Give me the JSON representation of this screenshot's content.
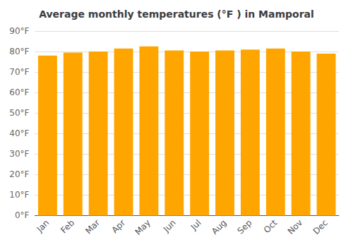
{
  "chart_data": {
    "type": "bar",
    "title": "Average monthly temperatures (°F ) in Mamporal",
    "categories": [
      "Jan",
      "Feb",
      "Mar",
      "Apr",
      "May",
      "Jun",
      "Jul",
      "Aug",
      "Sep",
      "Oct",
      "Nov",
      "Dec"
    ],
    "values": [
      78.0,
      79.5,
      80.0,
      81.5,
      82.5,
      80.5,
      80.0,
      80.5,
      81.0,
      81.5,
      80.0,
      79.0
    ],
    "color": "#FFA500",
    "ylim": [
      0,
      90
    ],
    "yticks": [
      {
        "value": 0,
        "label": "0°F"
      },
      {
        "value": 10,
        "label": "10°F"
      },
      {
        "value": 20,
        "label": "20°F"
      },
      {
        "value": 30,
        "label": "30°F"
      },
      {
        "value": 40,
        "label": "40°F"
      },
      {
        "value": 50,
        "label": "50°F"
      },
      {
        "value": 60,
        "label": "60°F"
      },
      {
        "value": 70,
        "label": "70°F"
      },
      {
        "value": 80,
        "label": "80°F"
      },
      {
        "value": 90,
        "label": "90°F"
      }
    ],
    "grid": true
  }
}
